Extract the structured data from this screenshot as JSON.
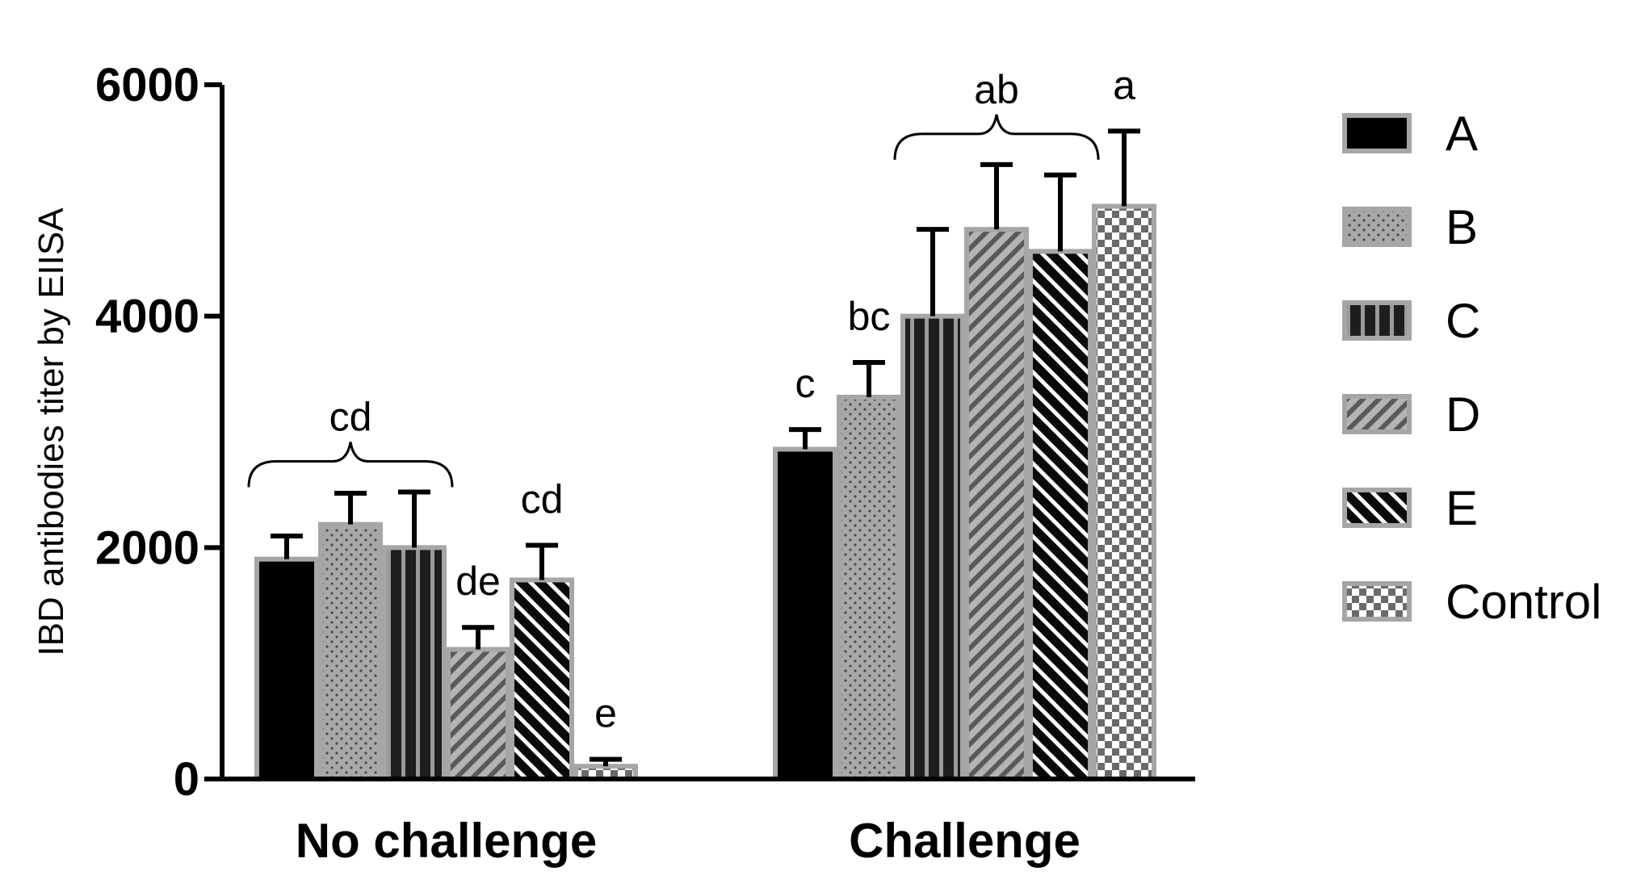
{
  "chart_data": {
    "type": "bar",
    "title": "",
    "xlabel": "",
    "ylabel": "IBD antibodies titer by EIISA",
    "ylim": [
      0,
      6000
    ],
    "yticks": [
      0,
      2000,
      4000,
      6000
    ],
    "ytick_labels": [
      "0",
      "2000",
      "4000",
      "6000"
    ],
    "categories": [
      "No challenge",
      "Challenge"
    ],
    "series": [
      {
        "name": "A",
        "values": [
          1900,
          2850
        ],
        "errors": [
          200,
          170
        ],
        "pattern": "solid-black"
      },
      {
        "name": "B",
        "values": [
          2200,
          3300
        ],
        "errors": [
          270,
          300
        ],
        "pattern": "dots"
      },
      {
        "name": "C",
        "values": [
          2000,
          4000
        ],
        "errors": [
          480,
          750
        ],
        "pattern": "vertical-stripes"
      },
      {
        "name": "D",
        "values": [
          1120,
          4750
        ],
        "errors": [
          190,
          560
        ],
        "pattern": "diag-light"
      },
      {
        "name": "E",
        "values": [
          1720,
          4560
        ],
        "errors": [
          300,
          660
        ],
        "pattern": "diag-dark"
      },
      {
        "name": "Control",
        "values": [
          110,
          4950
        ],
        "errors": [
          60,
          650
        ],
        "pattern": "checker"
      }
    ],
    "annotations": [
      {
        "text": "cd",
        "category": 0,
        "bracket_series": [
          0,
          2
        ]
      },
      {
        "text": "de",
        "category": 0,
        "series": 3
      },
      {
        "text": "cd",
        "category": 0,
        "series": 4
      },
      {
        "text": "e",
        "category": 0,
        "series": 5
      },
      {
        "text": "c",
        "category": 1,
        "series": 0
      },
      {
        "text": "bc",
        "category": 1,
        "series": 1
      },
      {
        "text": "ab",
        "category": 1,
        "bracket_series": [
          2,
          4
        ]
      },
      {
        "text": "a",
        "category": 1,
        "series": 5
      }
    ],
    "grid": false,
    "legend": {
      "placement": "right"
    }
  }
}
